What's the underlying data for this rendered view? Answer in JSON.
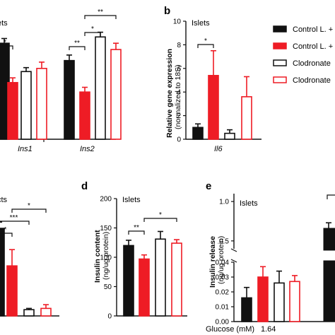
{
  "colors": {
    "black": "#111111",
    "red": "#ee1c25",
    "white": "#ffffff"
  },
  "legend": [
    "Control L. +",
    "Control L. +",
    "Clodronate",
    "Clodronate"
  ],
  "chart_data": [
    {
      "id": "a",
      "type": "bar",
      "panel_label": "",
      "annotation": "ets",
      "categories": [
        "Ins1",
        "Ins2"
      ],
      "ylim": [
        0,
        1.5
      ],
      "series": [
        {
          "values": [
            1.22,
            1.0
          ],
          "errors": [
            0.06,
            0.07
          ]
        },
        {
          "values": [
            0.72,
            0.6
          ],
          "errors": [
            0.06,
            0.06
          ]
        },
        {
          "values": [
            0.86,
            1.3
          ],
          "errors": [
            0.05,
            0.06
          ]
        },
        {
          "values": [
            0.9,
            1.14
          ],
          "errors": [
            0.08,
            0.08
          ]
        }
      ],
      "significance": [
        "*",
        "**",
        "*",
        "**"
      ]
    },
    {
      "id": "b",
      "type": "bar",
      "panel_label": "b",
      "annotation": "Islets",
      "ylabel": "Relative gene expression",
      "ylabel2": "(normalized to 18S)",
      "categories": [
        "Il6"
      ],
      "ylim": [
        0,
        10
      ],
      "yticks": [
        "0",
        "2",
        "4",
        "6",
        "8",
        "10"
      ],
      "series": [
        {
          "values": [
            1.0
          ],
          "errors": [
            0.3
          ]
        },
        {
          "values": [
            5.4
          ],
          "errors": [
            2.1
          ]
        },
        {
          "values": [
            0.5
          ],
          "errors": [
            0.3
          ]
        },
        {
          "values": [
            3.6
          ],
          "errors": [
            1.7
          ]
        }
      ],
      "significance": [
        "*"
      ]
    },
    {
      "id": "c",
      "type": "bar",
      "panel_label": "",
      "annotation": "cts",
      "ylim": [
        0,
        1
      ],
      "series": [
        {
          "values": [
            0.7
          ],
          "errors": [
            0.05
          ]
        },
        {
          "values": [
            0.4
          ],
          "errors": [
            0.13
          ]
        },
        {
          "values": [
            0.05
          ],
          "errors": [
            0.01
          ]
        },
        {
          "values": [
            0.06
          ],
          "errors": [
            0.03
          ]
        }
      ],
      "significance": [
        "*",
        "***",
        "*"
      ]
    },
    {
      "id": "d",
      "type": "bar",
      "panel_label": "d",
      "annotation": "Islets",
      "ylabel": "Insulin content",
      "ylabel2": "(ng/ug protein)",
      "ylim": [
        0,
        200
      ],
      "yticks": [
        "0",
        "50",
        "100",
        "150",
        "200"
      ],
      "series": [
        {
          "values": [
            120
          ],
          "errors": [
            9
          ]
        },
        {
          "values": [
            97
          ],
          "errors": [
            7
          ]
        },
        {
          "values": [
            131
          ],
          "errors": [
            13
          ]
        },
        {
          "values": [
            124
          ],
          "errors": [
            6
          ]
        }
      ],
      "significance": [
        "**",
        "*"
      ]
    },
    {
      "id": "e",
      "type": "bar",
      "panel_label": "e",
      "annotation": "Islets",
      "ylabel": "Insulin release",
      "ylabel2": "(ng/ug protein)",
      "xlabel": "Glucose (mM)",
      "xtick": "1.64",
      "ylim_upper": [
        0.4,
        1.1
      ],
      "ylim_lower": [
        0,
        0.04
      ],
      "yticks_upper": [
        "1.0",
        "0.5"
      ],
      "yticks_lower": [
        "0.04",
        "0.03",
        "0.02",
        "0.01",
        "0.00"
      ],
      "series": [
        {
          "values": [
            0.016
          ],
          "errors": [
            0.007
          ]
        },
        {
          "values": [
            0.03
          ],
          "errors": [
            0.007
          ]
        },
        {
          "values": [
            0.026
          ],
          "errors": [
            0.008
          ]
        },
        {
          "values": [
            0.027
          ],
          "errors": [
            0.004
          ]
        }
      ],
      "extra_bar": {
        "value": 0.66,
        "error": 0.07
      }
    }
  ]
}
